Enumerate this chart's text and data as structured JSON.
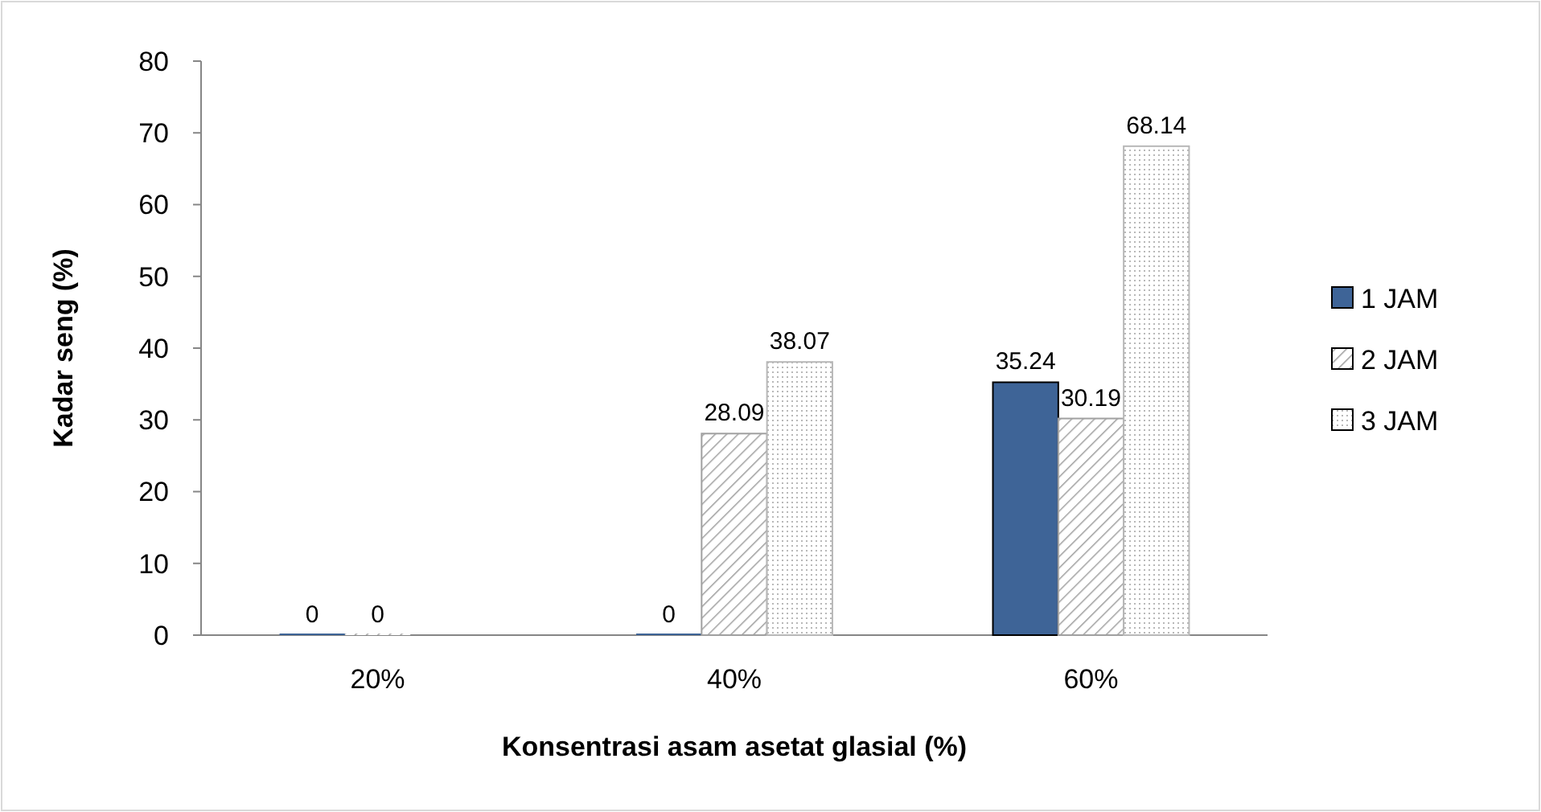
{
  "chart_data": {
    "type": "bar",
    "xlabel": "Konsentrasi  asam asetat  glasial (%)",
    "ylabel": "Kadar seng  (%)",
    "categories": [
      "20%",
      "40%",
      "60%"
    ],
    "series": [
      {
        "name": "1 JAM",
        "color": "#3e6497",
        "values": [
          0,
          0,
          35.24
        ]
      },
      {
        "name": "2 JAM",
        "color": "#a0a0a0",
        "values": [
          0,
          28.09,
          30.19
        ]
      },
      {
        "name": "3 JAM",
        "color": "#b8b8b8",
        "values": [
          null,
          38.07,
          68.14
        ]
      }
    ],
    "ylim": [
      0,
      80
    ],
    "yticks": [
      0,
      10,
      20,
      30,
      40,
      50,
      60,
      70,
      80
    ],
    "data_labels": true,
    "legend": "right",
    "grid": false
  }
}
